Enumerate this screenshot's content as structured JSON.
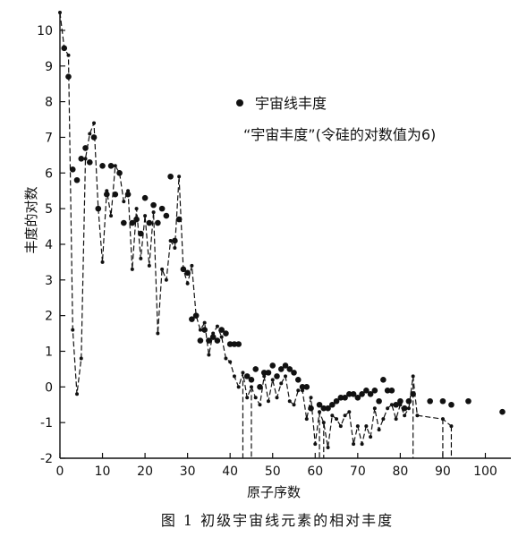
{
  "chart_data": {
    "type": "scatter",
    "title": "",
    "caption": "图 1  初级宇宙线元素的相对丰度",
    "xlabel": "原子序数",
    "ylabel": "丰度的对数",
    "xlim": [
      0,
      106
    ],
    "ylim": [
      -2,
      10.5
    ],
    "xticks": [
      0,
      10,
      20,
      30,
      40,
      50,
      60,
      70,
      80,
      90,
      100
    ],
    "yticks": [
      -2,
      -1,
      0,
      1,
      2,
      3,
      4,
      5,
      6,
      7,
      8,
      9,
      10
    ],
    "grid": false,
    "legend_position": "top-center",
    "series": [
      {
        "name": "宇宙线丰度",
        "style": "dots",
        "points": [
          [
            1,
            9.5
          ],
          [
            2,
            8.7
          ],
          [
            3,
            6.1
          ],
          [
            4,
            5.8
          ],
          [
            5,
            6.4
          ],
          [
            6,
            6.7
          ],
          [
            7,
            6.3
          ],
          [
            8,
            7.0
          ],
          [
            9,
            5.0
          ],
          [
            10,
            6.2
          ],
          [
            11,
            5.4
          ],
          [
            12,
            6.2
          ],
          [
            13,
            5.4
          ],
          [
            14,
            6.0
          ],
          [
            15,
            4.6
          ],
          [
            16,
            5.4
          ],
          [
            17,
            4.6
          ],
          [
            18,
            4.7
          ],
          [
            19,
            4.3
          ],
          [
            20,
            5.3
          ],
          [
            21,
            4.6
          ],
          [
            22,
            5.1
          ],
          [
            23,
            4.6
          ],
          [
            24,
            5.0
          ],
          [
            25,
            4.8
          ],
          [
            26,
            5.9
          ],
          [
            27,
            4.1
          ],
          [
            28,
            4.7
          ],
          [
            29,
            3.3
          ],
          [
            30,
            3.2
          ],
          [
            31,
            1.9
          ],
          [
            32,
            2.0
          ],
          [
            33,
            1.3
          ],
          [
            34,
            1.6
          ],
          [
            35,
            1.3
          ],
          [
            36,
            1.4
          ],
          [
            37,
            1.3
          ],
          [
            38,
            1.6
          ],
          [
            39,
            1.5
          ],
          [
            40,
            1.2
          ],
          [
            41,
            1.2
          ],
          [
            42,
            1.2
          ],
          [
            44,
            0.3
          ],
          [
            45,
            0.2
          ],
          [
            46,
            0.5
          ],
          [
            47,
            0.0
          ],
          [
            48,
            0.4
          ],
          [
            49,
            0.4
          ],
          [
            50,
            0.6
          ],
          [
            51,
            0.3
          ],
          [
            52,
            0.5
          ],
          [
            53,
            0.6
          ],
          [
            54,
            0.5
          ],
          [
            55,
            0.4
          ],
          [
            56,
            0.2
          ],
          [
            57,
            0.0
          ],
          [
            58,
            0.0
          ],
          [
            59,
            -0.6
          ],
          [
            61,
            -0.5
          ],
          [
            62,
            -0.6
          ],
          [
            63,
            -0.6
          ],
          [
            64,
            -0.5
          ],
          [
            65,
            -0.4
          ],
          [
            66,
            -0.3
          ],
          [
            67,
            -0.3
          ],
          [
            68,
            -0.2
          ],
          [
            69,
            -0.2
          ],
          [
            70,
            -0.3
          ],
          [
            71,
            -0.2
          ],
          [
            72,
            -0.1
          ],
          [
            73,
            -0.2
          ],
          [
            74,
            -0.1
          ],
          [
            75,
            -0.4
          ],
          [
            76,
            0.2
          ],
          [
            77,
            -0.1
          ],
          [
            78,
            -0.1
          ],
          [
            79,
            -0.5
          ],
          [
            80,
            -0.4
          ],
          [
            81,
            -0.6
          ],
          [
            82,
            -0.4
          ],
          [
            83,
            -0.2
          ],
          [
            87,
            -0.4
          ],
          [
            90,
            -0.4
          ],
          [
            92,
            -0.5
          ],
          [
            96,
            -0.4
          ],
          [
            104,
            -0.7
          ]
        ]
      },
      {
        "name": "“宇宙丰度”(令硅的对数值为6)",
        "style": "dashed-line-with-markers",
        "points": [
          [
            0,
            10.5
          ],
          [
            1,
            9.5
          ],
          [
            2,
            9.3
          ],
          [
            3,
            1.6
          ],
          [
            4,
            -0.2
          ],
          [
            5,
            0.8
          ],
          [
            6,
            6.4
          ],
          [
            7,
            7.1
          ],
          [
            8,
            7.4
          ],
          [
            9,
            5.0
          ],
          [
            10,
            3.5
          ],
          [
            11,
            5.5
          ],
          [
            12,
            4.8
          ],
          [
            13,
            6.2
          ],
          [
            14,
            6.0
          ],
          [
            15,
            5.2
          ],
          [
            16,
            5.5
          ],
          [
            17,
            3.3
          ],
          [
            18,
            5.0
          ],
          [
            19,
            3.6
          ],
          [
            20,
            4.8
          ],
          [
            21,
            3.4
          ],
          [
            22,
            4.9
          ],
          [
            23,
            1.5
          ],
          [
            24,
            3.3
          ],
          [
            25,
            3.0
          ],
          [
            26,
            4.1
          ],
          [
            27,
            3.9
          ],
          [
            28,
            5.9
          ],
          [
            29,
            3.3
          ],
          [
            30,
            2.9
          ],
          [
            31,
            3.4
          ],
          [
            32,
            2.0
          ],
          [
            33,
            1.6
          ],
          [
            34,
            1.8
          ],
          [
            35,
            0.9
          ],
          [
            36,
            1.5
          ],
          [
            37,
            1.7
          ],
          [
            38,
            1.4
          ],
          [
            39,
            0.8
          ],
          [
            40,
            0.7
          ],
          [
            41,
            0.3
          ],
          [
            42,
            0.0
          ],
          [
            43,
            0.4
          ],
          [
            44,
            -0.3
          ],
          [
            45,
            0.0
          ],
          [
            46,
            -0.3
          ],
          [
            47,
            -0.5
          ],
          [
            48,
            0.3
          ],
          [
            49,
            -0.4
          ],
          [
            50,
            0.2
          ],
          [
            51,
            -0.3
          ],
          [
            52,
            0.1
          ],
          [
            53,
            0.3
          ],
          [
            54,
            -0.4
          ],
          [
            55,
            -0.5
          ],
          [
            56,
            -0.1
          ],
          [
            57,
            -0.1
          ],
          [
            58,
            -0.9
          ],
          [
            59,
            -0.3
          ],
          [
            60,
            -1.6
          ],
          [
            61,
            -0.7
          ],
          [
            62,
            -1.0
          ],
          [
            63,
            -1.7
          ],
          [
            64,
            -0.8
          ],
          [
            65,
            -0.9
          ],
          [
            66,
            -1.1
          ],
          [
            67,
            -0.8
          ],
          [
            68,
            -0.7
          ],
          [
            69,
            -1.6
          ],
          [
            70,
            -1.1
          ],
          [
            71,
            -1.6
          ],
          [
            72,
            -1.1
          ],
          [
            73,
            -1.4
          ],
          [
            74,
            -0.6
          ],
          [
            75,
            -1.2
          ],
          [
            76,
            -0.9
          ],
          [
            77,
            -0.6
          ],
          [
            78,
            -0.5
          ],
          [
            79,
            -0.9
          ],
          [
            80,
            -0.5
          ],
          [
            81,
            -0.8
          ],
          [
            82,
            -0.6
          ],
          [
            83,
            0.3
          ],
          [
            84,
            -0.8
          ],
          [
            90,
            -0.9
          ],
          [
            92,
            -1.1
          ]
        ],
        "drops": [
          43,
          45,
          61,
          62,
          83,
          90,
          92
        ]
      }
    ]
  }
}
